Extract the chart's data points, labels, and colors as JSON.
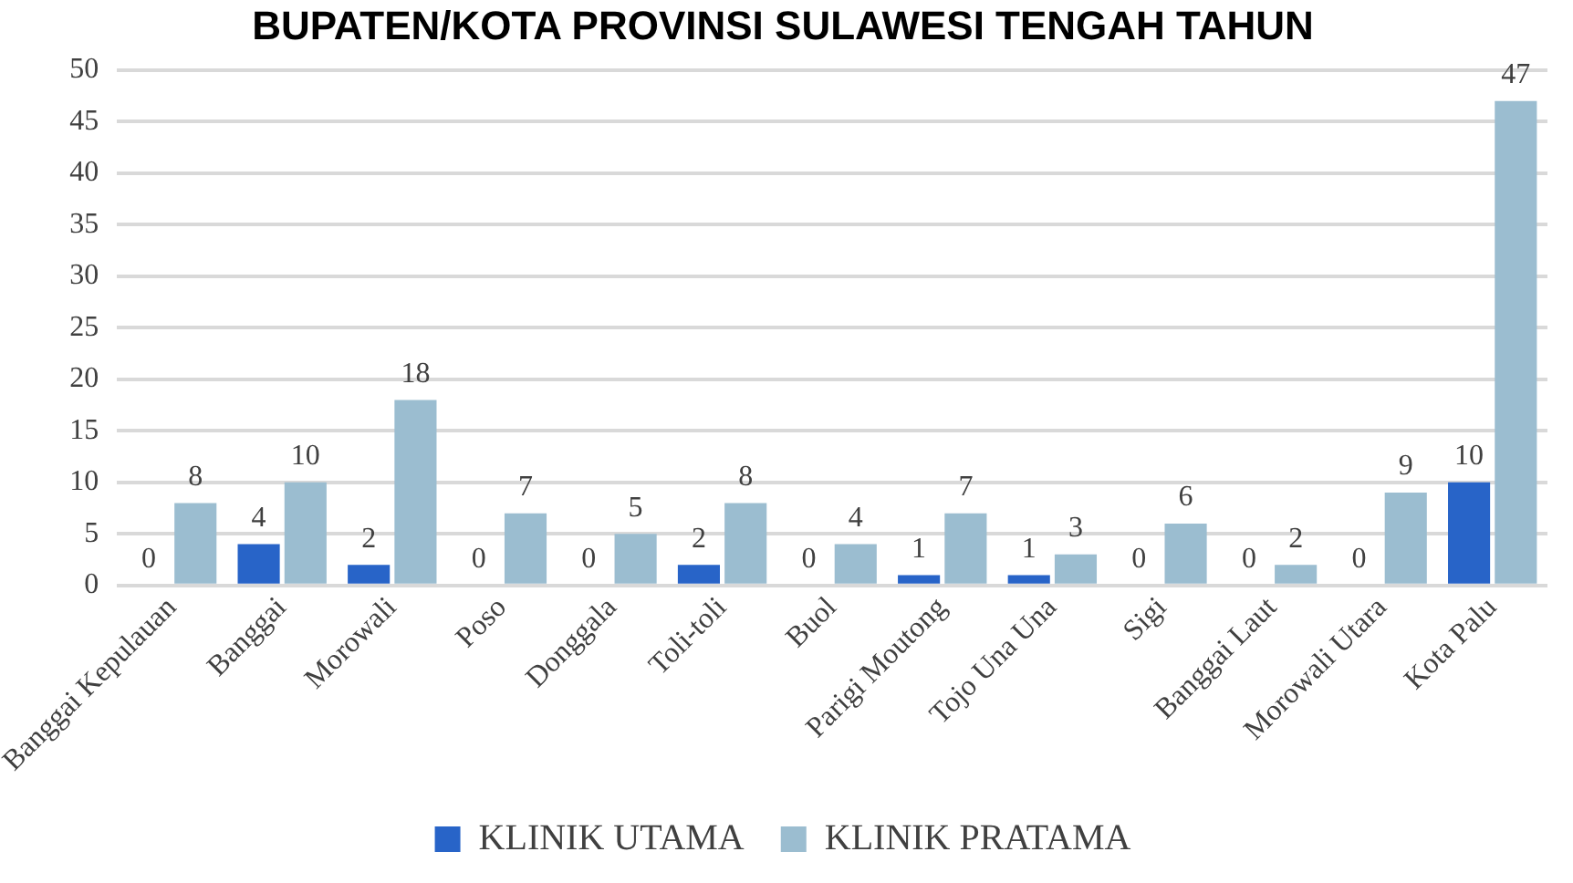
{
  "chart_data": {
    "type": "bar",
    "title": "BUPATEN/KOTA PROVINSI SULAWESI TENGAH TAHUN",
    "categories": [
      "Banggai Kepulauan",
      "Banggai",
      "Morowali",
      "Poso",
      "Donggala",
      "Toli-toli",
      "Buol",
      "Parigi Moutong",
      "Tojo Una Una",
      "Sigi",
      "Banggai Laut",
      "Morowali Utara",
      "Kota Palu"
    ],
    "series": [
      {
        "name": "KLINIK UTAMA",
        "color": "#2864c8",
        "values": [
          0,
          4,
          2,
          0,
          0,
          2,
          0,
          1,
          1,
          0,
          0,
          0,
          10
        ]
      },
      {
        "name": "KLINIK PRATAMA",
        "color": "#9bbdd0",
        "values": [
          8,
          10,
          18,
          7,
          5,
          8,
          4,
          7,
          3,
          6,
          2,
          9,
          47
        ]
      }
    ],
    "ylim": [
      0,
      50
    ],
    "yticks": [
      0,
      5,
      10,
      15,
      20,
      25,
      30,
      35,
      40,
      45,
      50
    ],
    "grid": "y",
    "legend": "bottom",
    "data_labels": true
  }
}
